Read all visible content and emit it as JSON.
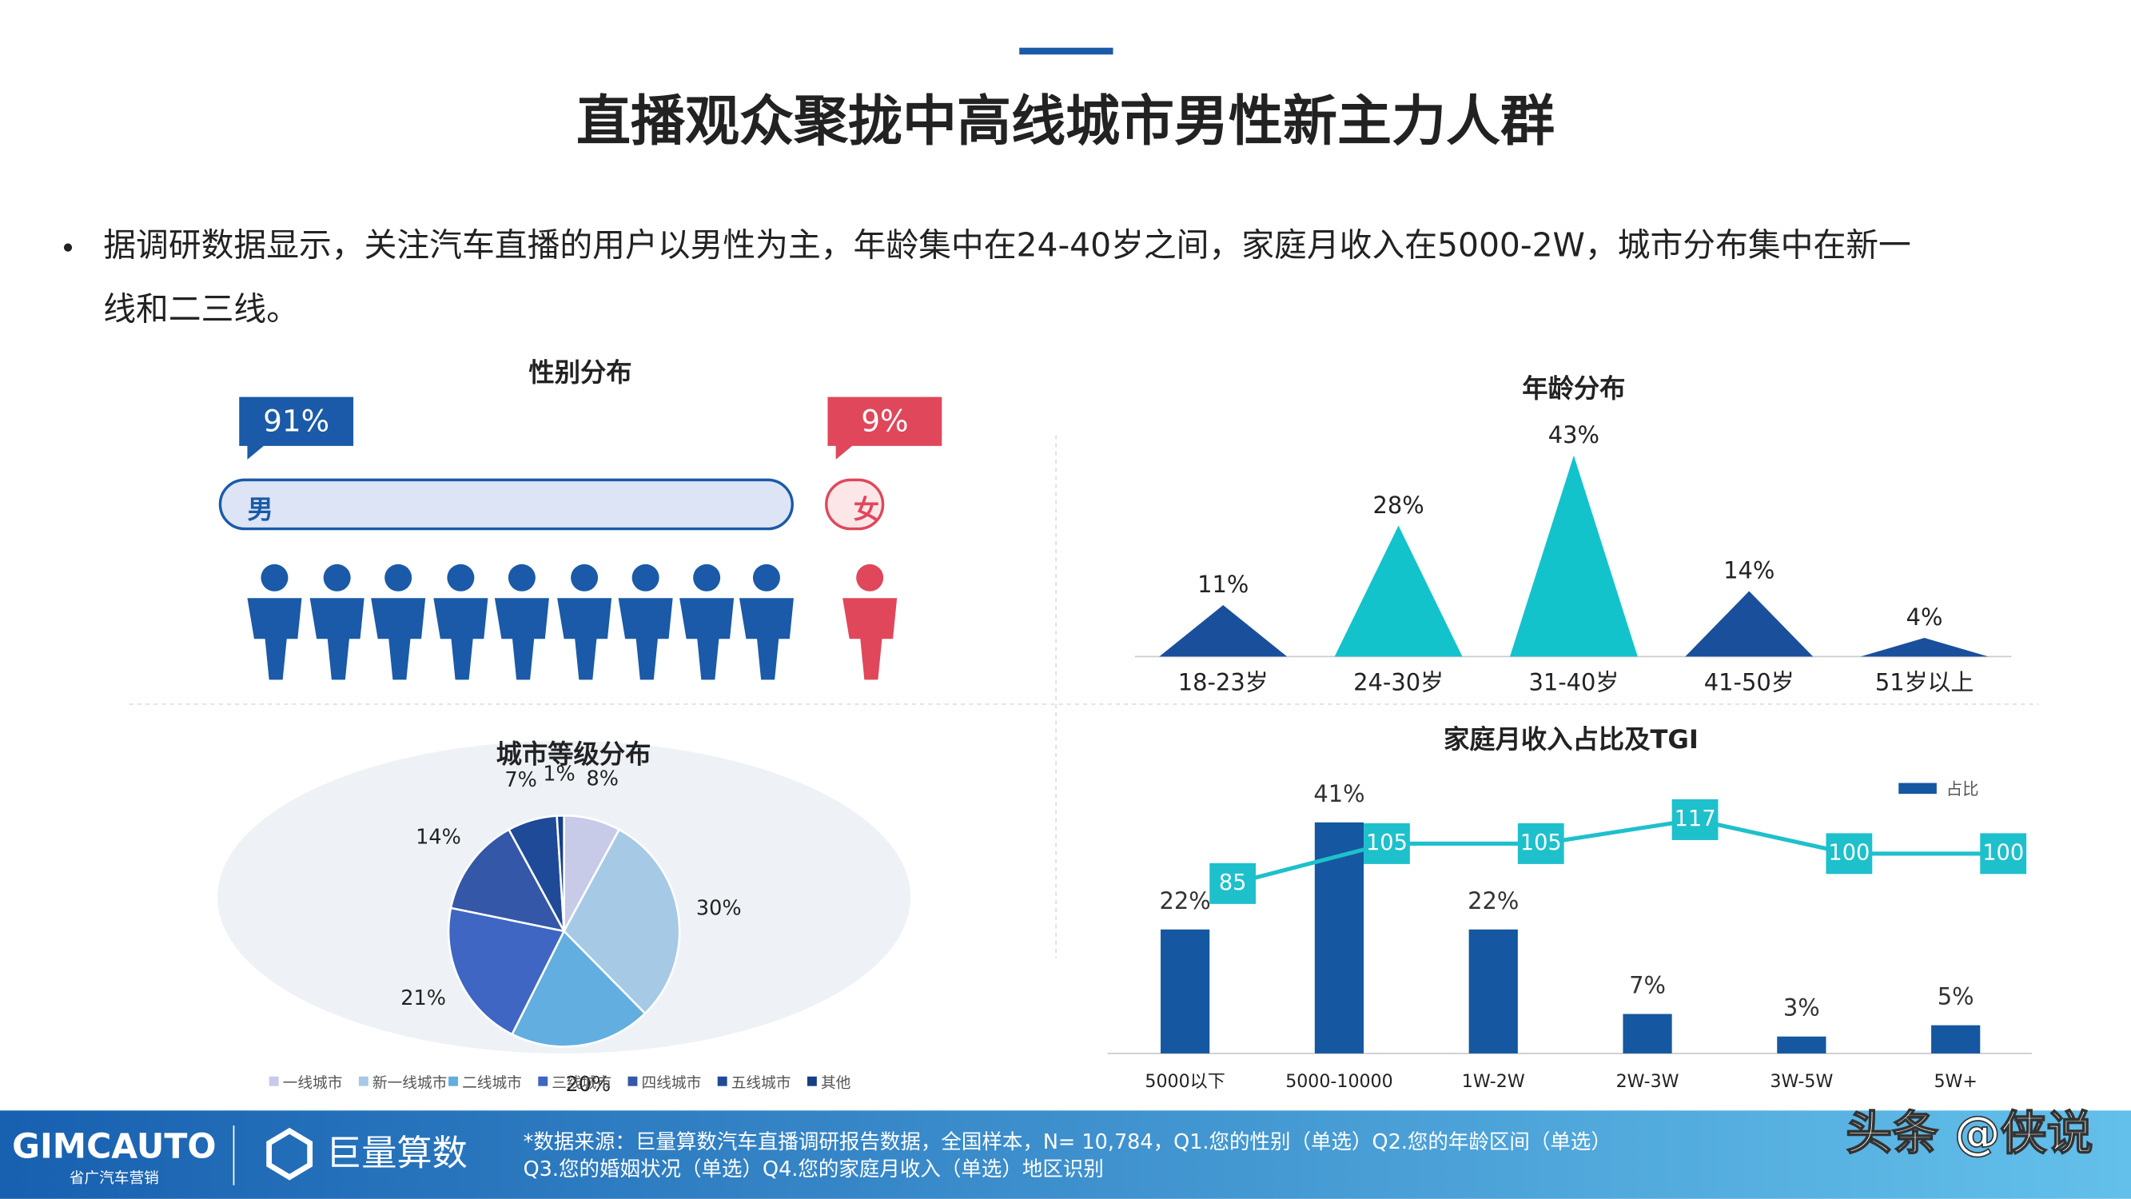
{
  "header": {
    "title": "直播观众聚拢中高线城市男性新主力人群",
    "bullet": "据调研数据显示，关注汽车直播的用户以男性为主，年龄集中在24-40岁之间，家庭月收入在5000-2W，城市分布集中在新一",
    "bullet_cont": "线和二三线。"
  },
  "chart_data": [
    {
      "type": "gender",
      "title": "性别分布",
      "categories": [
        "男",
        "女"
      ],
      "values": [
        91,
        9
      ],
      "value_labels": [
        "91%",
        "9%"
      ],
      "colors": [
        "#1a5aa8",
        "#e0475a"
      ]
    },
    {
      "type": "triangle",
      "title": "年龄分布",
      "categories": [
        "18-23岁",
        "24-30岁",
        "31-40岁",
        "41-50岁",
        "51岁以上"
      ],
      "values": [
        11,
        28,
        43,
        14,
        4
      ],
      "value_labels": [
        "11%",
        "28%",
        "43%",
        "14%",
        "4%"
      ],
      "colors": [
        "#1a4f9c",
        "#13c3cc",
        "#13c3cc",
        "#1a4f9c",
        "#1a4f9c"
      ]
    },
    {
      "type": "pie",
      "title": "城市等级分布",
      "categories": [
        "一线城市",
        "新一线城市",
        "二线城市",
        "三线城市",
        "四线城市",
        "五线城市",
        "其他"
      ],
      "values": [
        8,
        30,
        20,
        21,
        14,
        7,
        1
      ],
      "value_labels": [
        "8%",
        "30%",
        "20%",
        "21%",
        "14%",
        "7%",
        "1%"
      ],
      "colors": [
        "#c7cbe8",
        "#a6c9e6",
        "#62aee0",
        "#3e66c2",
        "#3557a8",
        "#1f4a98",
        "#173f86"
      ]
    },
    {
      "type": "bar_line",
      "title": "家庭月收入占比及TGI",
      "categories": [
        "5000以下",
        "5000-10000",
        "1W-2W",
        "2W-3W",
        "3W-5W",
        "5W+"
      ],
      "series": [
        {
          "name": "占比",
          "color": "#1557a0",
          "values": [
            22,
            41,
            22,
            7,
            3,
            5
          ],
          "value_labels": [
            "22%",
            "41%",
            "22%",
            "7%",
            "3%",
            "5%"
          ]
        },
        {
          "color": "#1ec0cc",
          "axis": "y2",
          "values": [
            85,
            105,
            105,
            117,
            100,
            100
          ]
        }
      ]
    }
  ],
  "footer": {
    "brand": "GIMCAUTO",
    "brand_sub": "省广汽车营销",
    "partner": "巨量算数",
    "source": "*数据来源：巨量算数汽车直播调研报告数据，全国样本，N= 10,784，Q1.您的性别（单选）Q2.您的年龄区间（单选）",
    "source2": "Q3.您的婚姻状况（单选）Q4.您的家庭月收入（单选）地区识别",
    "watermark": "头条 @侠说"
  }
}
